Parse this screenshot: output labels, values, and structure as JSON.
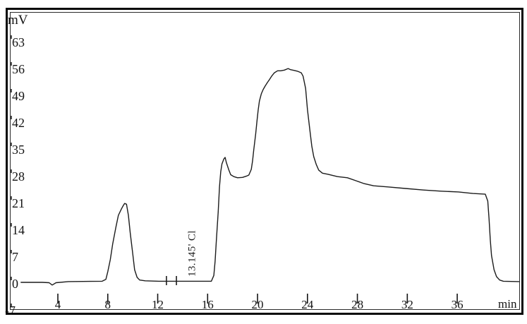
{
  "figure": {
    "y_axis_unit": "mV",
    "x_axis_unit": "min",
    "colors": {
      "trace": "#1c1c1c",
      "frame": "#070707",
      "text": "#141414",
      "background": "#ffffff"
    }
  },
  "chart_data": {
    "type": "line",
    "title": "",
    "xlabel": "min",
    "ylabel": "mV",
    "xlim": [
      1.0,
      41.0
    ],
    "ylim": [
      -7,
      72
    ],
    "grid": false,
    "legend": "none",
    "x_ticks": [
      4,
      8,
      12,
      16,
      20,
      24,
      28,
      32,
      36
    ],
    "y_ticks": [
      63,
      56,
      49,
      42,
      35,
      28,
      21,
      14,
      7,
      0,
      -7
    ],
    "annotations": [
      {
        "text": "13.145'  Cl",
        "retention_time_min": 13.145,
        "analyte": "Cl",
        "x_min": 15.0,
        "rotated_deg": -90
      }
    ],
    "peak_markers_min": [
      12.7,
      13.5
    ],
    "series": [
      {
        "name": "detector-signal",
        "points": [
          [
            1.05,
            0
          ],
          [
            2.75,
            0
          ],
          [
            3.3,
            -0.1
          ],
          [
            3.55,
            -0.7
          ],
          [
            3.85,
            -0.1
          ],
          [
            4.85,
            0.2
          ],
          [
            7.55,
            0.3
          ],
          [
            7.85,
            0.8
          ],
          [
            8.0,
            2.8
          ],
          [
            8.2,
            5.9
          ],
          [
            8.4,
            10.1
          ],
          [
            8.65,
            14.4
          ],
          [
            8.85,
            17.5
          ],
          [
            9.1,
            19.2
          ],
          [
            9.25,
            20.1
          ],
          [
            9.35,
            20.6
          ],
          [
            9.5,
            20.4
          ],
          [
            9.65,
            17.5
          ],
          [
            9.8,
            12.9
          ],
          [
            10.0,
            7.4
          ],
          [
            10.15,
            3.3
          ],
          [
            10.35,
            1.3
          ],
          [
            10.55,
            0.6
          ],
          [
            11.0,
            0.4
          ],
          [
            12.1,
            0.3
          ],
          [
            14.6,
            0.3
          ],
          [
            16.3,
            0.3
          ],
          [
            16.5,
            1.8
          ],
          [
            16.6,
            5.5
          ],
          [
            16.7,
            11.0
          ],
          [
            16.85,
            18.4
          ],
          [
            16.95,
            24.9
          ],
          [
            17.05,
            28.9
          ],
          [
            17.15,
            30.9
          ],
          [
            17.3,
            32.2
          ],
          [
            17.4,
            32.6
          ],
          [
            17.5,
            31.3
          ],
          [
            17.7,
            29.3
          ],
          [
            17.85,
            28.1
          ],
          [
            18.1,
            27.6
          ],
          [
            18.4,
            27.3
          ],
          [
            18.8,
            27.4
          ],
          [
            19.1,
            27.7
          ],
          [
            19.3,
            28.0
          ],
          [
            19.5,
            29.5
          ],
          [
            19.6,
            31.7
          ],
          [
            19.7,
            34.6
          ],
          [
            19.85,
            38.7
          ],
          [
            19.95,
            42.0
          ],
          [
            20.05,
            44.9
          ],
          [
            20.15,
            47.3
          ],
          [
            20.3,
            49.2
          ],
          [
            20.45,
            50.3
          ],
          [
            20.6,
            51.2
          ],
          [
            20.8,
            52.2
          ],
          [
            20.95,
            52.9
          ],
          [
            21.15,
            53.9
          ],
          [
            21.35,
            54.7
          ],
          [
            21.6,
            55.2
          ],
          [
            21.85,
            55.2
          ],
          [
            22.15,
            55.4
          ],
          [
            22.45,
            55.8
          ],
          [
            22.65,
            55.5
          ],
          [
            22.95,
            55.3
          ],
          [
            23.2,
            55.1
          ],
          [
            23.5,
            54.7
          ],
          [
            23.65,
            53.8
          ],
          [
            23.85,
            50.6
          ],
          [
            24.0,
            45.1
          ],
          [
            24.2,
            39.6
          ],
          [
            24.35,
            35.5
          ],
          [
            24.5,
            32.8
          ],
          [
            24.7,
            30.8
          ],
          [
            24.9,
            29.3
          ],
          [
            25.2,
            28.5
          ],
          [
            25.65,
            28.2
          ],
          [
            26.4,
            27.6
          ],
          [
            27.2,
            27.3
          ],
          [
            27.9,
            26.5
          ],
          [
            28.5,
            25.8
          ],
          [
            29.3,
            25.2
          ],
          [
            30.45,
            24.9
          ],
          [
            31.85,
            24.5
          ],
          [
            33.3,
            24.1
          ],
          [
            34.7,
            23.8
          ],
          [
            36.1,
            23.6
          ],
          [
            37.25,
            23.2
          ],
          [
            38.25,
            23.0
          ],
          [
            38.45,
            21.2
          ],
          [
            38.55,
            16.6
          ],
          [
            38.65,
            11.0
          ],
          [
            38.75,
            7.0
          ],
          [
            38.95,
            3.3
          ],
          [
            39.15,
            1.5
          ],
          [
            39.4,
            0.6
          ],
          [
            39.7,
            0.3
          ],
          [
            40.95,
            0.2
          ]
        ]
      }
    ]
  }
}
